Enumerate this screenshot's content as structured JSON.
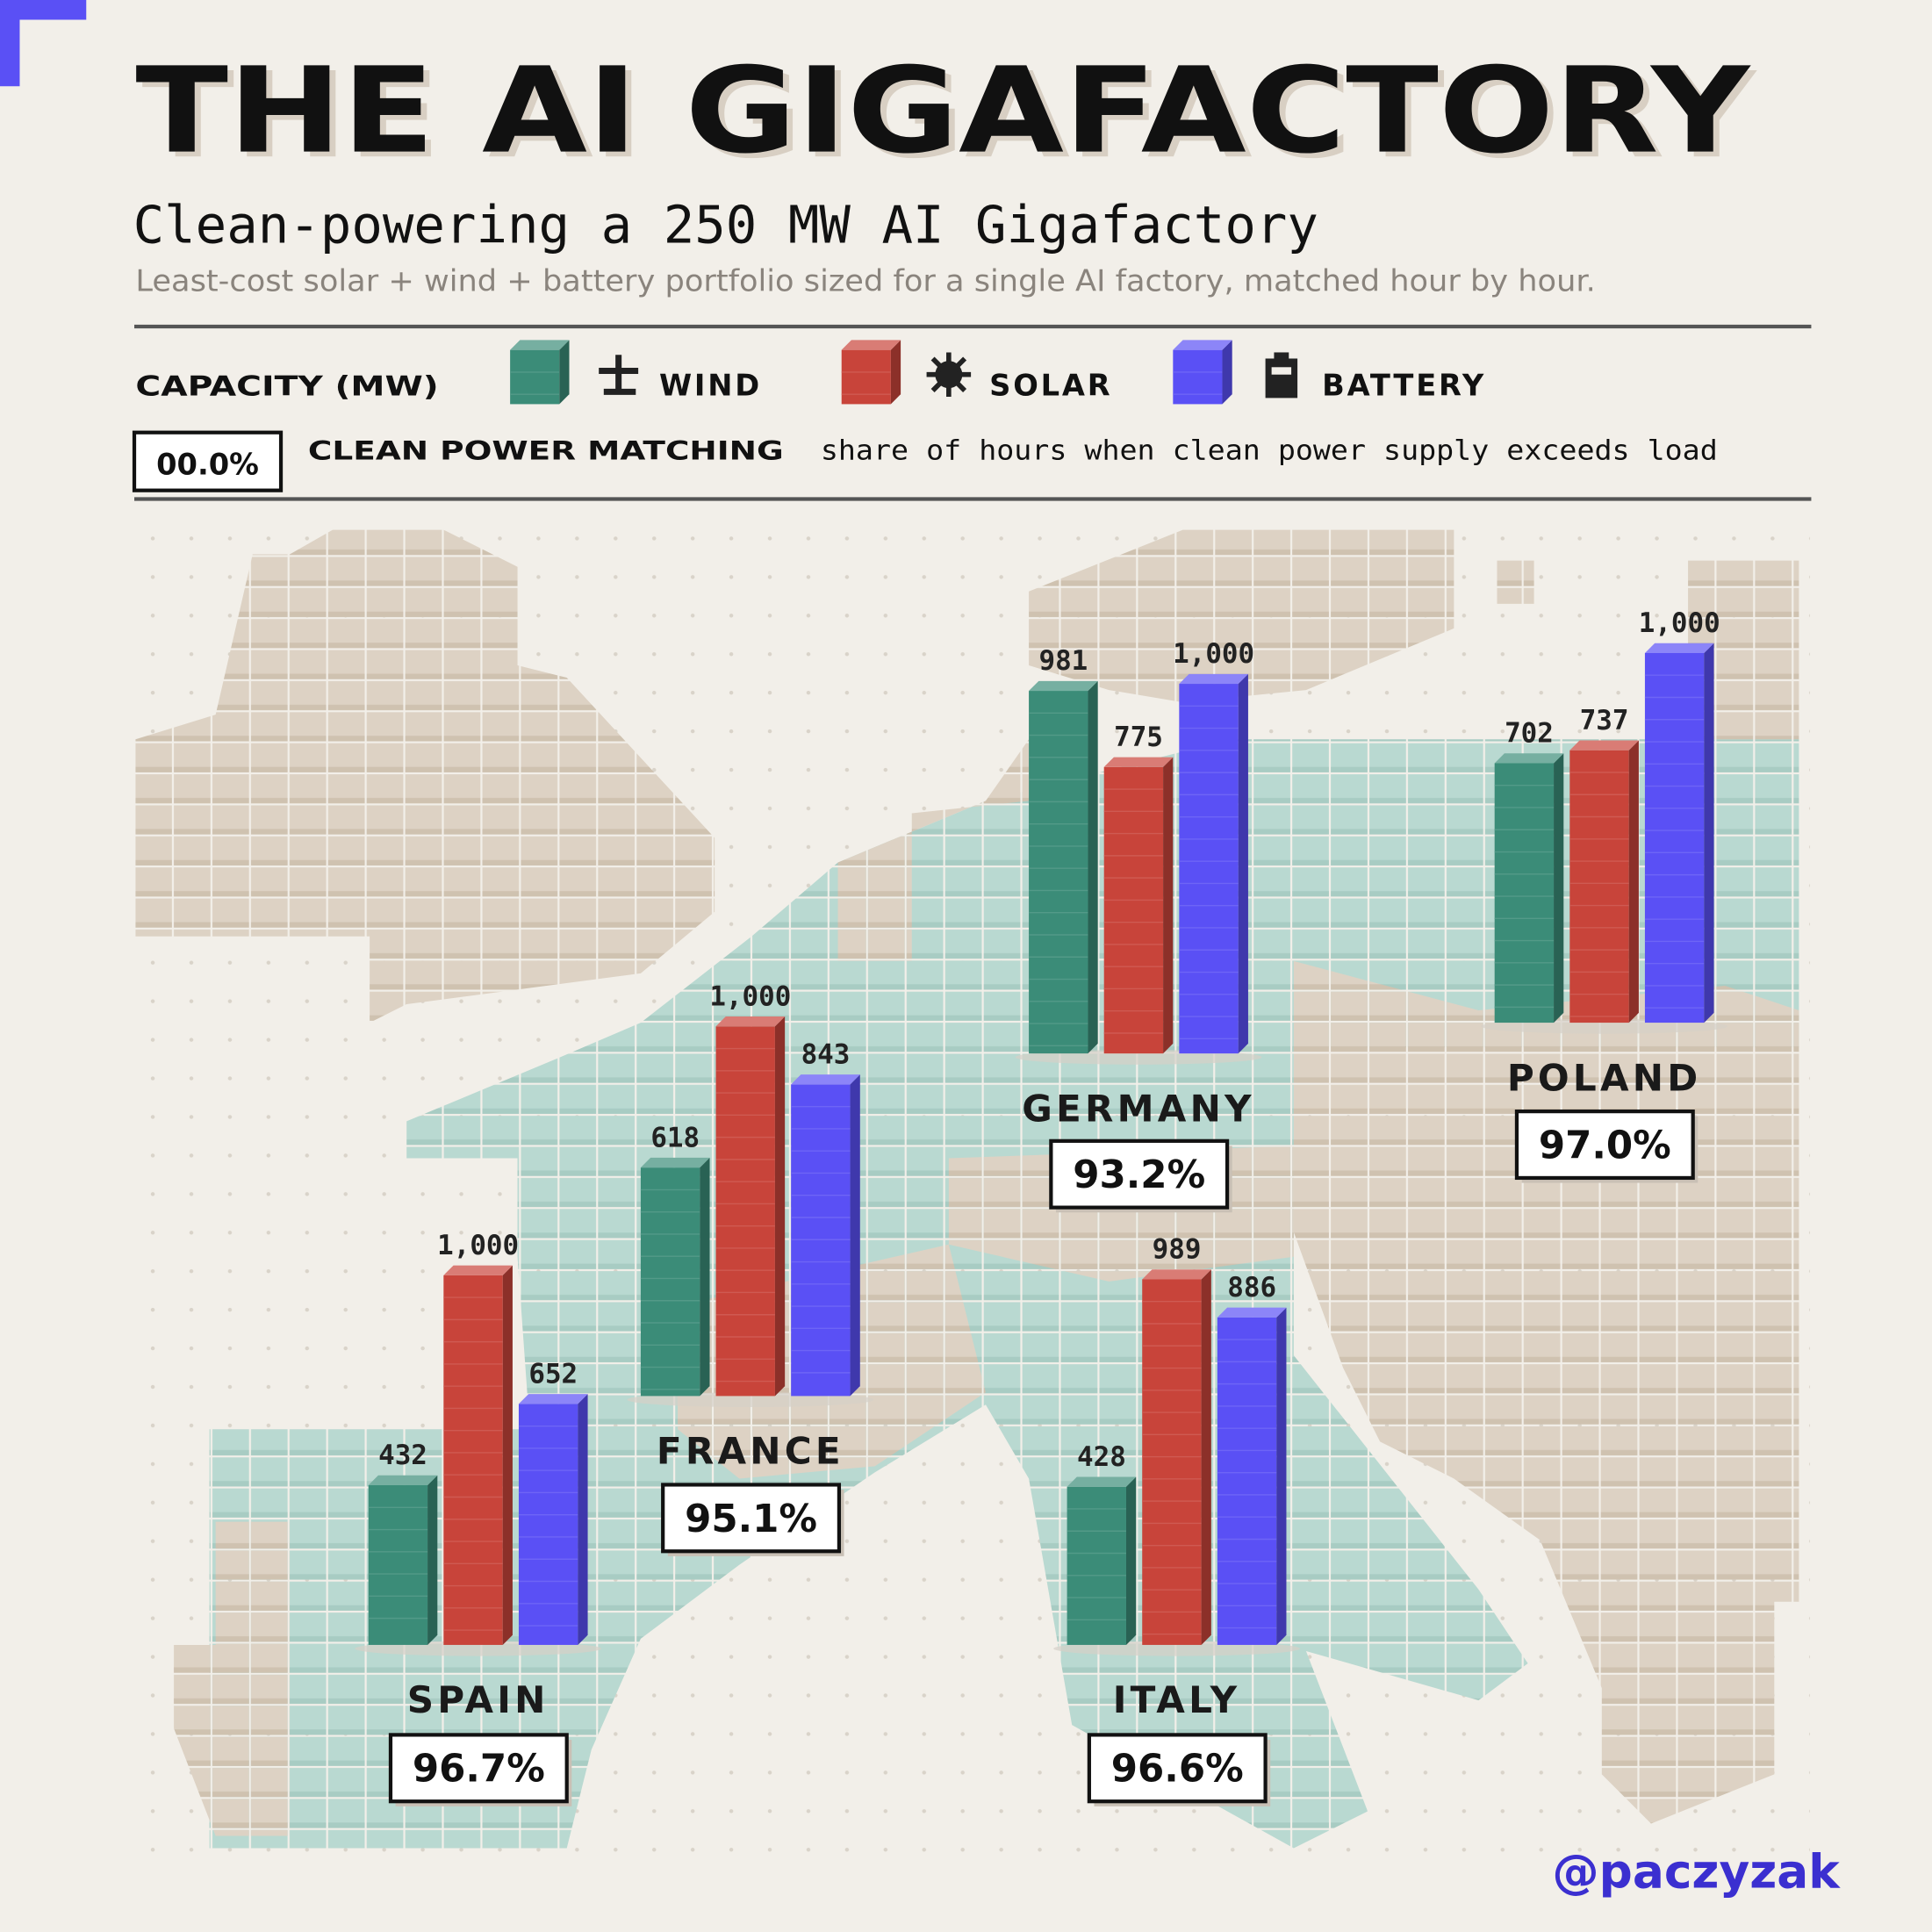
{
  "header": {
    "title": "THE AI GIGAFACTORY",
    "subtitle": "Clean-powering a 250 MW AI Gigafactory",
    "description": "Least-cost solar + wind + battery portfolio sized for a single AI factory, matched hour by hour."
  },
  "legend": {
    "capacity_label": "CAPACITY (MW)",
    "matching_sample": "00.0%",
    "matching_label": "CLEAN POWER MATCHING",
    "matching_description": "share of hours when clean power supply exceeds load"
  },
  "chart_data": {
    "type": "bar",
    "categories": [
      "SPAIN",
      "FRANCE",
      "GERMANY",
      "ITALY",
      "POLAND"
    ],
    "series": [
      {
        "name": "WIND",
        "color": "#3b8c78",
        "values": [
          432,
          618,
          981,
          428,
          702
        ],
        "value_labels": [
          "432",
          "618",
          "981",
          "428",
          "702"
        ]
      },
      {
        "name": "SOLAR",
        "color": "#c8443a",
        "values": [
          1000,
          1000,
          775,
          989,
          737
        ],
        "value_labels": [
          "1,000",
          "1,000",
          "775",
          "989",
          "737"
        ]
      },
      {
        "name": "BATTERY",
        "color": "#5a50f5",
        "values": [
          652,
          843,
          1000,
          886,
          1000
        ],
        "value_labels": [
          "652",
          "843",
          "1,000",
          "886",
          "1,000"
        ]
      }
    ],
    "matching": {
      "values": [
        96.7,
        95.1,
        93.2,
        96.6,
        97.0
      ],
      "value_labels": [
        "96.7%",
        "95.1%",
        "93.2%",
        "96.6%",
        "97.0%"
      ]
    }
  },
  "credit": "@paczyzak"
}
